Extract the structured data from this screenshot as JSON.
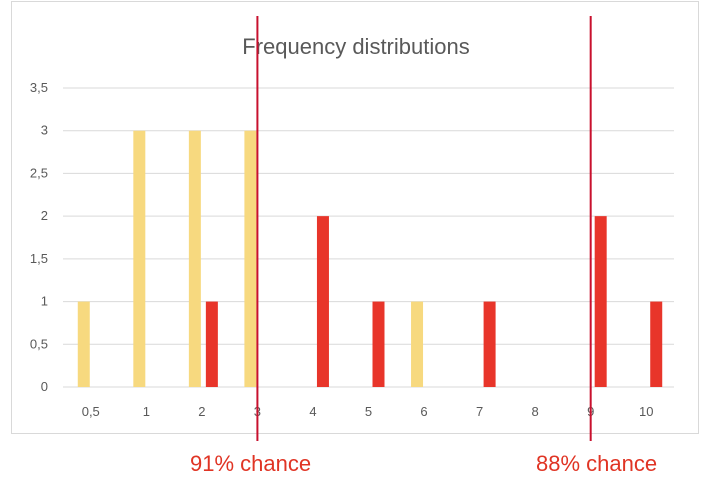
{
  "chart_data": {
    "type": "bar",
    "title": "Frequency distributions",
    "xlabel": "",
    "ylabel": "",
    "categories": [
      "0,5",
      "1",
      "2",
      "3",
      "4",
      "5",
      "6",
      "7",
      "8",
      "9",
      "10"
    ],
    "ylim": [
      0,
      3.5
    ],
    "yticks": [
      {
        "value": 0,
        "label": "0"
      },
      {
        "value": 0.5,
        "label": "0,5"
      },
      {
        "value": 1,
        "label": "1"
      },
      {
        "value": 1.5,
        "label": "1,5"
      },
      {
        "value": 2,
        "label": "2"
      },
      {
        "value": 2.5,
        "label": "2,5"
      },
      {
        "value": 3,
        "label": "3"
      },
      {
        "value": 3.5,
        "label": "3,5"
      }
    ],
    "grid": true,
    "series": [
      {
        "color": "#f7d97f",
        "values": [
          1,
          3,
          3,
          3,
          0,
          0,
          1,
          0,
          0,
          0,
          0
        ]
      },
      {
        "color": "#e8352a",
        "values": [
          0,
          0,
          1,
          0,
          2,
          1,
          0,
          1,
          0,
          2,
          1
        ]
      }
    ],
    "vertical_lines": [
      {
        "x": 3,
        "color": "#c8102e",
        "label": "91% chance"
      },
      {
        "x": 9,
        "color": "#c8102e",
        "label": "88% chance"
      }
    ]
  }
}
